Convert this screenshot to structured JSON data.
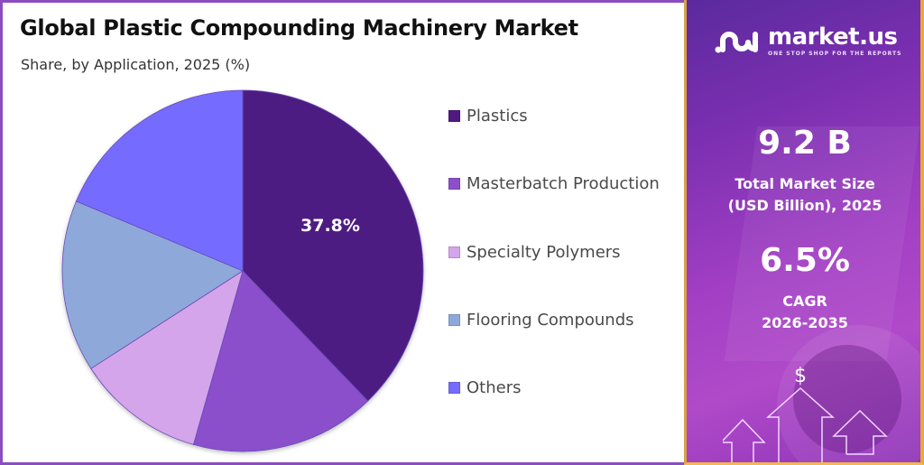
{
  "header": {
    "title": "Global Plastic Compounding Machinery Market",
    "subtitle": "Share, by Application, 2025 (%)"
  },
  "chart_data": {
    "type": "pie",
    "title": "Global Plastic Compounding Machinery Market",
    "subtitle": "Share, by Application, 2025 (%)",
    "categories": [
      "Plastics",
      "Masterbatch Production",
      "Specialty Polymers",
      "Flooring Compounds",
      "Others"
    ],
    "values": [
      37.8,
      16.6,
      11.5,
      15.4,
      18.7
    ],
    "colors": [
      "#4e1a82",
      "#8b4fcb",
      "#d4a5ea",
      "#8ea8da",
      "#756cff"
    ],
    "data_labels": [
      {
        "category": "Plastics",
        "text": "37.8%"
      }
    ],
    "start_angle": "12 o'clock",
    "direction": "clockwise",
    "legend_position": "right"
  },
  "pie": {
    "label": "37.8%"
  },
  "legend": {
    "items": [
      {
        "label": "Plastics",
        "color": "#4e1a82"
      },
      {
        "label": "Masterbatch Production",
        "color": "#8b4fcb"
      },
      {
        "label": "Specialty Polymers",
        "color": "#d4a5ea"
      },
      {
        "label": "Flooring Compounds",
        "color": "#8ea8da"
      },
      {
        "label": "Others",
        "color": "#756cff"
      }
    ]
  },
  "sidebar": {
    "logo_text": "market.us",
    "logo_tagline": "ONE STOP SHOP FOR THE REPORTS",
    "market_size_value": "9.2 B",
    "market_size_label_1": "Total Market Size",
    "market_size_label_2": "(USD Billion), 2025",
    "cagr_value": "6.5%",
    "cagr_label_1": "CAGR",
    "cagr_label_2": "2026-2035",
    "currency_symbol": "$"
  }
}
